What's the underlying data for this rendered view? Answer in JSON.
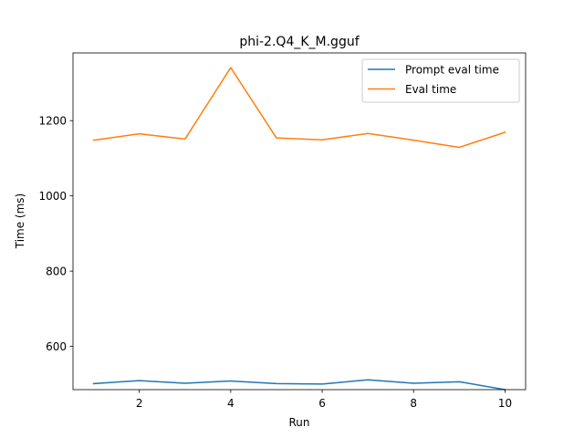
{
  "chart_data": {
    "type": "line",
    "title": "phi-2.Q4_K_M.gguf",
    "xlabel": "Run",
    "ylabel": "Time (ms)",
    "x": [
      1,
      2,
      3,
      4,
      5,
      6,
      7,
      8,
      9,
      10
    ],
    "xlim": [
      0.55,
      10.45
    ],
    "ylim": [
      485,
      1380
    ],
    "xticks": [
      2,
      4,
      6,
      8,
      10
    ],
    "yticks": [
      600,
      800,
      1000,
      1200
    ],
    "grid": false,
    "legend": "upper-right",
    "series": [
      {
        "name": "Prompt eval time",
        "color": "#1f77b4",
        "values": [
          501,
          509,
          502,
          508,
          501,
          500,
          511,
          502,
          506,
          485
        ]
      },
      {
        "name": "Eval time",
        "color": "#ff7f0e",
        "values": [
          1148,
          1165,
          1151,
          1341,
          1154,
          1149,
          1166,
          1148,
          1129,
          1169
        ]
      }
    ]
  }
}
